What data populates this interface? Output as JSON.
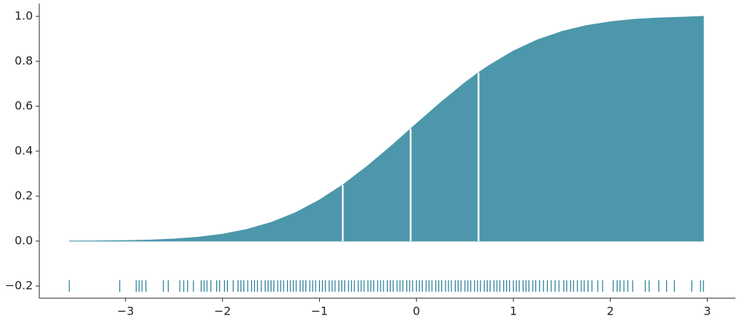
{
  "chart_data": {
    "type": "ecdf",
    "x": [
      -3.58,
      -3.25,
      -3.0,
      -2.75,
      -2.5,
      -2.25,
      -2.0,
      -1.75,
      -1.5,
      -1.25,
      -1.0,
      -0.76,
      -0.5,
      -0.25,
      -0.06,
      0.25,
      0.5,
      0.64,
      0.75,
      1.0,
      1.25,
      1.5,
      1.75,
      2.0,
      2.25,
      2.5,
      2.75,
      2.96
    ],
    "values": [
      0.0004,
      0.0011,
      0.0023,
      0.0048,
      0.0095,
      0.0176,
      0.031,
      0.052,
      0.083,
      0.126,
      0.183,
      0.25,
      0.336,
      0.427,
      0.5,
      0.617,
      0.705,
      0.75,
      0.782,
      0.846,
      0.896,
      0.933,
      0.959,
      0.976,
      0.987,
      0.993,
      0.9965,
      1.0
    ],
    "color": "#4c97ab",
    "quartiles": {
      "x": [
        -0.76,
        -0.06,
        0.64
      ],
      "values": [
        0.25,
        0.5,
        0.75
      ],
      "color": "#ffffff"
    },
    "rug": {
      "color": "#1b7590",
      "x": [
        -3.58,
        -3.06,
        -2.89,
        -2.86,
        -2.83,
        -2.79,
        -2.61,
        -2.56,
        -2.44,
        -2.4,
        -2.36,
        -2.3,
        -2.22,
        -2.19,
        -2.16,
        -2.12,
        -2.06,
        -2.03,
        -1.98,
        -1.95,
        -1.89,
        -1.84,
        -1.81,
        -1.78,
        -1.74,
        -1.7,
        -1.67,
        -1.64,
        -1.6,
        -1.56,
        -1.53,
        -1.5,
        -1.47,
        -1.43,
        -1.4,
        -1.37,
        -1.33,
        -1.3,
        -1.27,
        -1.24,
        -1.2,
        -1.17,
        -1.14,
        -1.1,
        -1.07,
        -1.04,
        -1.0,
        -0.97,
        -0.94,
        -0.9,
        -0.87,
        -0.84,
        -0.8,
        -0.77,
        -0.74,
        -0.7,
        -0.67,
        -0.64,
        -0.6,
        -0.57,
        -0.54,
        -0.5,
        -0.47,
        -0.44,
        -0.4,
        -0.37,
        -0.34,
        -0.3,
        -0.27,
        -0.24,
        -0.2,
        -0.17,
        -0.14,
        -0.1,
        -0.07,
        -0.04,
        0.0,
        0.03,
        0.06,
        0.1,
        0.13,
        0.16,
        0.2,
        0.23,
        0.26,
        0.3,
        0.33,
        0.36,
        0.4,
        0.43,
        0.46,
        0.5,
        0.53,
        0.56,
        0.6,
        0.63,
        0.66,
        0.7,
        0.73,
        0.76,
        0.8,
        0.83,
        0.86,
        0.9,
        0.93,
        0.96,
        1.0,
        1.03,
        1.06,
        1.1,
        1.13,
        1.16,
        1.2,
        1.23,
        1.27,
        1.31,
        1.35,
        1.39,
        1.43,
        1.47,
        1.52,
        1.55,
        1.59,
        1.62,
        1.66,
        1.7,
        1.73,
        1.77,
        1.81,
        1.87,
        1.92,
        2.03,
        2.07,
        2.1,
        2.14,
        2.18,
        2.23,
        2.36,
        2.4,
        2.5,
        2.58,
        2.66,
        2.84,
        2.93,
        2.96
      ]
    },
    "xlim": [
      -3.89,
      3.29
    ],
    "ylim": [
      -0.254,
      1.057
    ],
    "xticks": [
      {
        "value": -3,
        "label": "−3"
      },
      {
        "value": -2,
        "label": "−2"
      },
      {
        "value": -1,
        "label": "−1"
      },
      0,
      1,
      2,
      3
    ],
    "yticks": [
      {
        "value": -0.2,
        "label": "−0.2"
      },
      {
        "value": 0,
        "label": "0.0"
      },
      {
        "value": 0.2,
        "label": "0.2"
      },
      {
        "value": 0.4,
        "label": "0.4"
      },
      {
        "value": 0.6,
        "label": "0.6"
      },
      {
        "value": 0.8,
        "label": "0.8"
      },
      {
        "value": 1,
        "label": "1.0"
      }
    ]
  }
}
